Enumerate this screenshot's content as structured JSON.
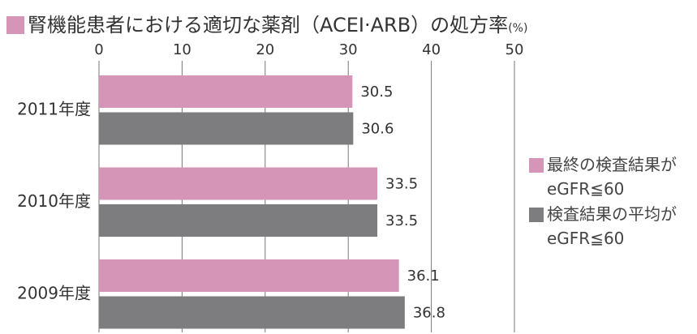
{
  "chart_data": {
    "type": "bar",
    "orientation": "horizontal",
    "title": "腎機能患者における適切な薬剤（ACEI·ARB）の処方率",
    "unit": "(%)",
    "categories": [
      "2011年度",
      "2010年度",
      "2009年度"
    ],
    "series": [
      {
        "name": "最終の検査結果がeGFR≦60",
        "color": "#d595b6",
        "values": [
          30.5,
          33.5,
          36.1
        ]
      },
      {
        "name": "検査結果の平均がeGFR≦60",
        "color": "#7d7d7f",
        "values": [
          30.6,
          33.5,
          36.8
        ]
      }
    ],
    "xlim": [
      0,
      50
    ],
    "xticks": [
      0,
      10,
      20,
      30,
      40,
      50
    ],
    "grid": true,
    "title_marker_color": "#d595b6"
  }
}
